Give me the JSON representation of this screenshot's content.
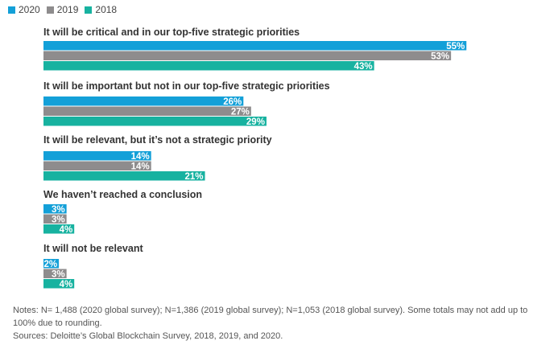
{
  "chart_data": {
    "type": "bar",
    "orientation": "horizontal",
    "categories": [
      "It will be critical and in our top-five strategic priorities",
      "It will be important but not in our top-five strategic priorities",
      "It will be relevant, but it’s not a strategic priority",
      "We haven’t reached a conclusion",
      "It will not be relevant"
    ],
    "series": [
      {
        "name": "2020",
        "color": "#13A0D8",
        "values": [
          55,
          26,
          14,
          3,
          2
        ],
        "labels": [
          "55%",
          "26%",
          "14%",
          "3%",
          "2%"
        ]
      },
      {
        "name": "2019",
        "color": "#8E8C8D",
        "values": [
          53,
          27,
          14,
          3,
          3
        ],
        "labels": [
          "53%",
          "27%",
          "14%",
          "3%",
          "3%"
        ]
      },
      {
        "name": "2018",
        "color": "#17B2A0",
        "values": [
          43,
          29,
          21,
          4,
          4
        ],
        "labels": [
          "43%",
          "29%",
          "21%",
          "4%",
          "4%"
        ]
      }
    ],
    "legend_position": "top-left",
    "xlim": [
      0,
      100
    ],
    "grid": false
  },
  "notes": {
    "line1": "Notes: N= 1,488 (2020 global survey); N=1,386 (2019 global survey); N=1,053 (2018 global survey). Some totals may not add up to 100% due to rounding.",
    "source": "Sources: Deloitte’s Global Blockchain Survey, 2018, 2019, and 2020."
  }
}
